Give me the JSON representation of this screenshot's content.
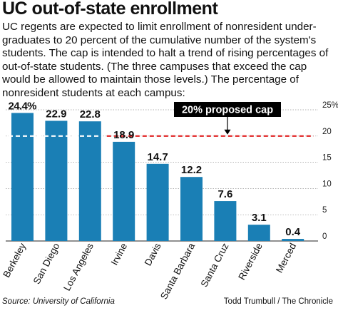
{
  "header": {
    "title": "UC out-of-state enrollment",
    "description": "UC regents are expected to limit enrollment of nonresident under-graduates to 20 percent of the cumulative number of the system's students. The cap is intended to halt a trend of rising percentages of out-of-state students. (The three campuses that exceed the cap would be allowed to maintain those levels.) The percentage of nonresident students at each campus:"
  },
  "footer": {
    "source": "Source: University of California",
    "credit": "Todd Trumbull / The Chronicle"
  },
  "chart_data": {
    "type": "bar",
    "categories": [
      "Berkeley",
      "San Diego",
      "Los Angeles",
      "Irvine",
      "Davis",
      "Santa Barbara",
      "Santa Cruz",
      "Riverside",
      "Merced"
    ],
    "values": [
      24.4,
      22.9,
      22.8,
      18.9,
      14.7,
      12.2,
      7.6,
      3.1,
      0.4
    ],
    "value_labels": [
      "24.4%",
      "22.9",
      "22.8",
      "18.9",
      "14.7",
      "12.2",
      "7.6",
      "3.1",
      "0.4"
    ],
    "ylim": [
      0,
      25
    ],
    "yticks": [
      0,
      5,
      10,
      15,
      20,
      25
    ],
    "ytick_labels": [
      "0",
      "5",
      "10",
      "15",
      "20",
      "25%"
    ],
    "reference_line": {
      "value": 20,
      "label": "20% proposed cap",
      "color": "#e02020"
    },
    "bar_color": "#1a7fb5",
    "grid": true
  }
}
